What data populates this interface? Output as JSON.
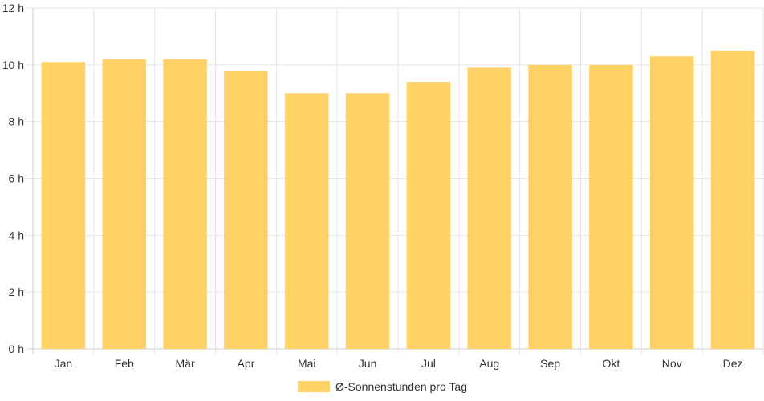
{
  "chart_data": {
    "type": "bar",
    "categories": [
      "Jan",
      "Feb",
      "Mär",
      "Apr",
      "Mai",
      "Jun",
      "Jul",
      "Aug",
      "Sep",
      "Okt",
      "Nov",
      "Dez"
    ],
    "series": [
      {
        "name": "Ø-Sonnenstunden pro Tag",
        "values": [
          10.1,
          10.2,
          10.2,
          9.8,
          9.0,
          9.0,
          9.4,
          9.9,
          10.0,
          10.0,
          10.3,
          10.5
        ],
        "color": "#ffd166"
      }
    ],
    "y_ticks": [
      "0 h",
      "2 h",
      "4 h",
      "6 h",
      "8 h",
      "10 h",
      "12 h"
    ],
    "ylim": [
      0,
      12
    ],
    "grid": true,
    "legend_position": "bottom"
  }
}
